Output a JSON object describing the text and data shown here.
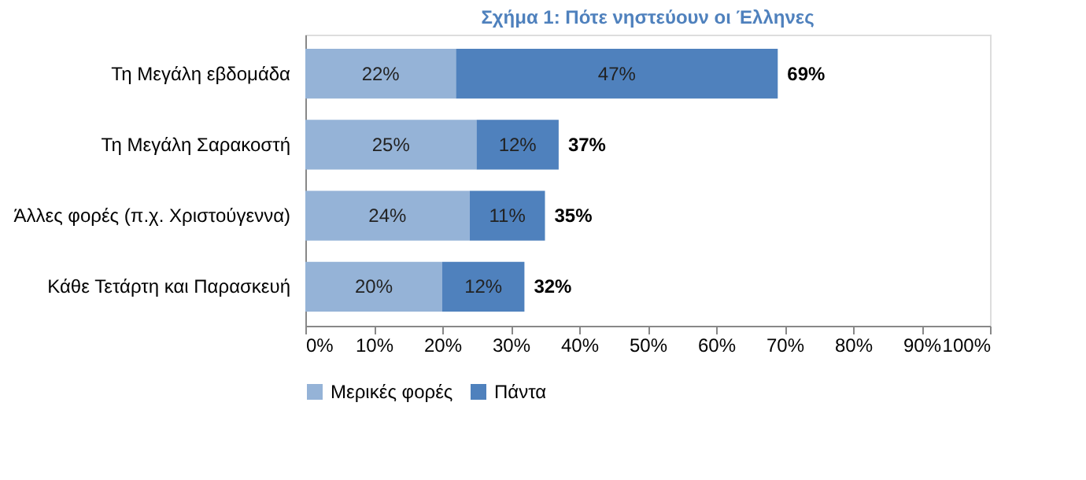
{
  "chart_data": {
    "type": "bar",
    "orientation": "horizontal",
    "stacked": true,
    "title": "Σχήμα 1: Πότε νηστεύουν οι Έλληνες",
    "categories": [
      "Τη Μεγάλη εβδομάδα",
      "Τη Μεγάλη Σαρακοστή",
      "Άλλες φορές (π.χ. Χριστούγεννα)",
      "Κάθε Τετάρτη και Παρασκευή"
    ],
    "series": [
      {
        "name": "Μερικές φορές",
        "color": "#95b3d7",
        "values": [
          22,
          25,
          24,
          20
        ],
        "value_labels": [
          "22%",
          "25%",
          "24%",
          "20%"
        ]
      },
      {
        "name": "Πάντα",
        "color": "#4f81bd",
        "values": [
          47,
          12,
          11,
          12
        ],
        "value_labels": [
          "47%",
          "12%",
          "11%",
          "12%"
        ]
      }
    ],
    "totals": [
      "69%",
      "37%",
      "35%",
      "32%"
    ],
    "xlim": [
      0,
      100
    ],
    "xticks": [
      {
        "value": 0,
        "label": "0%"
      },
      {
        "value": 10,
        "label": "10%"
      },
      {
        "value": 20,
        "label": "20%"
      },
      {
        "value": 30,
        "label": "30%"
      },
      {
        "value": 40,
        "label": "40%"
      },
      {
        "value": 50,
        "label": "50%"
      },
      {
        "value": 60,
        "label": "60%"
      },
      {
        "value": 70,
        "label": "70%"
      },
      {
        "value": 80,
        "label": "80%"
      },
      {
        "value": 90,
        "label": "90%"
      },
      {
        "value": 100,
        "label": "100%"
      }
    ],
    "grid": false,
    "legend": "bottom"
  }
}
